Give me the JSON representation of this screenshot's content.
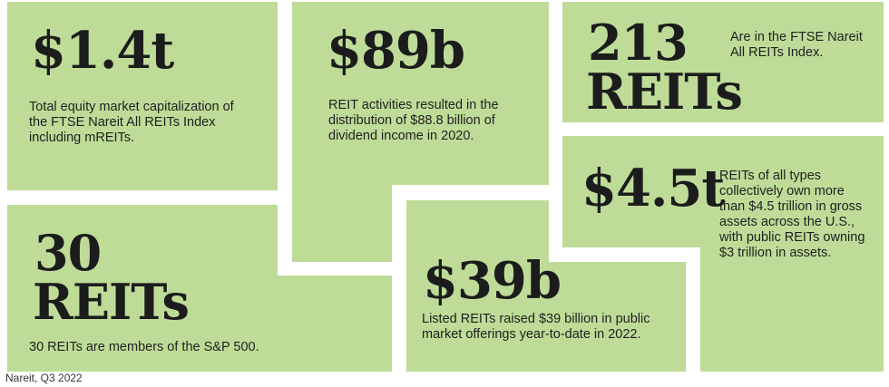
{
  "stats": [
    {
      "value": "$1.4t",
      "description": "Total equity market capitalization of the FTSE Nareit All REITs Index including mREITs."
    },
    {
      "value": "$89b",
      "description": "REIT activities resulted in the distribution of $88.8 billion of dividend income in 2020."
    },
    {
      "value_line1": "213",
      "value_line2": "REITs",
      "description": "Are in the FTSE Nareit All REITs Index."
    },
    {
      "value_line1": "30",
      "value_line2": "REITs",
      "description": "30 REITs are members of the S&P 500."
    },
    {
      "value": "$39b",
      "description": "Listed REITs raised $39 billion in public market offerings year-to-date in 2022."
    },
    {
      "value": "$4.5t",
      "description": "REITs of all types collectively own more than $4.5 trillion in gross assets across the U.S., with public REITs owning $3 trillion in assets."
    }
  ],
  "source": "Nareit, Q3 2022",
  "colors": {
    "tile": "#bedc98",
    "text": "#1f1f1f",
    "background": "#ffffff"
  }
}
